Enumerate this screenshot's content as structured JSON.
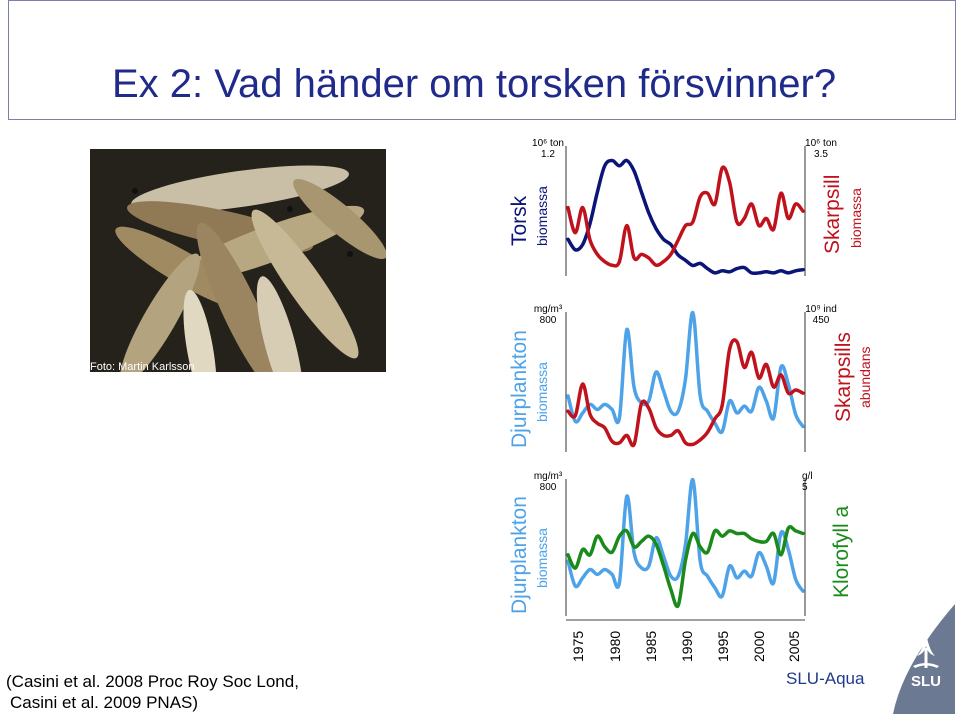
{
  "title": "Ex 2: Vad händer om torsken försvinner?",
  "photo": {
    "credit": "Foto: Martin Karlsson"
  },
  "citation": {
    "line1": "(Casini et al. 2008 Proc Roy Soc Lond,",
    "line2": "Casini et al. 2009 PNAS)"
  },
  "footer": {
    "org": "SLU-Aqua"
  },
  "colors": {
    "title": "#1f2a8a",
    "red": "#c0121d",
    "blue": "#0b1577",
    "lightblue": "#4ea3e8",
    "green": "#1a8a1a",
    "dark_red_label": "#c0121d",
    "navy_label": "#0b1577"
  },
  "panels": {
    "top": {
      "left_label": "Torsk",
      "left_sub": "biomassa",
      "left_unit": "10⁶ ton",
      "left_max": "1.2",
      "right_label": "Skarpsill",
      "right_sub": "biomassa",
      "right_unit": "10⁶ ton",
      "right_max": "3.5"
    },
    "middle": {
      "left_label": "Djurplankton",
      "left_sub": "biomassa",
      "left_unit": "mg/m³",
      "left_max": "800",
      "right_label": "Skarpsills",
      "right_sub": "abundans",
      "right_unit": "10⁹ ind",
      "right_max": "450"
    },
    "bottom": {
      "left_label": "Djurplankton",
      "left_sub": "biomassa",
      "left_unit": "mg/m³",
      "left_max": "800",
      "right_label": "Klorofyll a",
      "right_sub": "",
      "right_unit": "g/l",
      "right_max": "5"
    }
  },
  "x_axis": {
    "ticks": [
      "1975",
      "1980",
      "1985",
      "1990",
      "1995",
      "2000",
      "2005"
    ]
  },
  "chart_data": [
    {
      "type": "line",
      "x": [
        1974,
        1975,
        1976,
        1977,
        1978,
        1979,
        1980,
        1981,
        1982,
        1983,
        1984,
        1985,
        1986,
        1987,
        1988,
        1989,
        1990,
        1991,
        1992,
        1993,
        1994,
        1995,
        1996,
        1997,
        1998,
        1999,
        2000,
        2001,
        2002,
        2003,
        2004,
        2005,
        2006
      ],
      "series": [
        {
          "name": "Torsk",
          "color": "#0b1577",
          "values": [
            0.35,
            0.25,
            0.3,
            0.5,
            0.8,
            1.05,
            1.1,
            1.05,
            1.1,
            1.0,
            0.8,
            0.6,
            0.45,
            0.35,
            0.3,
            0.2,
            0.15,
            0.1,
            0.12,
            0.07,
            0.03,
            0.05,
            0.04,
            0.07,
            0.08,
            0.03,
            0.03,
            0.04,
            0.03,
            0.05,
            0.03,
            0.05,
            0.06
          ]
        },
        {
          "name": "Skarpsill",
          "color": "#c0121d",
          "values": [
            1.9,
            1.2,
            1.9,
            1.0,
            0.6,
            0.4,
            0.3,
            0.4,
            1.4,
            0.5,
            0.6,
            0.5,
            0.3,
            0.4,
            0.6,
            1.0,
            1.4,
            1.5,
            2.2,
            2.3,
            2.0,
            3.0,
            2.6,
            1.5,
            1.6,
            2.0,
            1.4,
            1.6,
            1.3,
            2.3,
            1.6,
            2.0,
            1.8
          ]
        }
      ]
    },
    {
      "type": "line",
      "x": [
        1974,
        1975,
        1976,
        1977,
        1978,
        1979,
        1980,
        1981,
        1982,
        1983,
        1984,
        1985,
        1986,
        1987,
        1988,
        1989,
        1990,
        1991,
        1992,
        1993,
        1994,
        1995,
        1996,
        1997,
        1998,
        1999,
        2000,
        2001,
        2002,
        2003,
        2004,
        2005,
        2006
      ],
      "series": [
        {
          "name": "Djurplankton",
          "color": "#4ea3e8",
          "values": [
            330,
            180,
            230,
            280,
            250,
            280,
            250,
            200,
            720,
            380,
            290,
            300,
            470,
            360,
            240,
            240,
            430,
            820,
            330,
            240,
            170,
            120,
            300,
            230,
            270,
            240,
            380,
            300,
            200,
            500,
            400,
            220,
            150
          ]
        },
        {
          "name": "Skarpsills",
          "color": "#c0121d",
          "values": [
            135,
            120,
            225,
            125,
            95,
            80,
            35,
            30,
            55,
            25,
            160,
            145,
            80,
            55,
            55,
            70,
            30,
            25,
            40,
            65,
            110,
            155,
            340,
            365,
            280,
            330,
            245,
            290,
            215,
            255,
            195,
            205,
            195
          ]
        }
      ]
    },
    {
      "type": "line",
      "x": [
        1974,
        1975,
        1976,
        1977,
        1978,
        1979,
        1980,
        1981,
        1982,
        1983,
        1984,
        1985,
        1986,
        1987,
        1988,
        1989,
        1990,
        1991,
        1992,
        1993,
        1994,
        1995,
        1996,
        1997,
        1998,
        1999,
        2000,
        2001,
        2002,
        2003,
        2004,
        2005,
        2006
      ],
      "series": [
        {
          "name": "Djurplankton",
          "color": "#4ea3e8",
          "values": [
            330,
            180,
            230,
            280,
            250,
            280,
            250,
            200,
            720,
            380,
            290,
            300,
            470,
            360,
            240,
            240,
            430,
            820,
            330,
            240,
            170,
            120,
            300,
            230,
            270,
            240,
            380,
            300,
            200,
            500,
            400,
            220,
            150
          ]
        },
        {
          "name": "Klorofyll a",
          "color": "#1a8a1a",
          "values": [
            2.3,
            1.8,
            2.5,
            2.3,
            3.0,
            2.6,
            2.4,
            3.0,
            3.2,
            2.6,
            2.8,
            3.0,
            2.7,
            1.9,
            1.0,
            0.4,
            2.1,
            3.1,
            2.6,
            2.4,
            3.2,
            3.0,
            3.2,
            3.1,
            3.1,
            2.9,
            2.8,
            2.8,
            3.1,
            2.3,
            3.3,
            3.2,
            3.1
          ]
        }
      ]
    }
  ]
}
